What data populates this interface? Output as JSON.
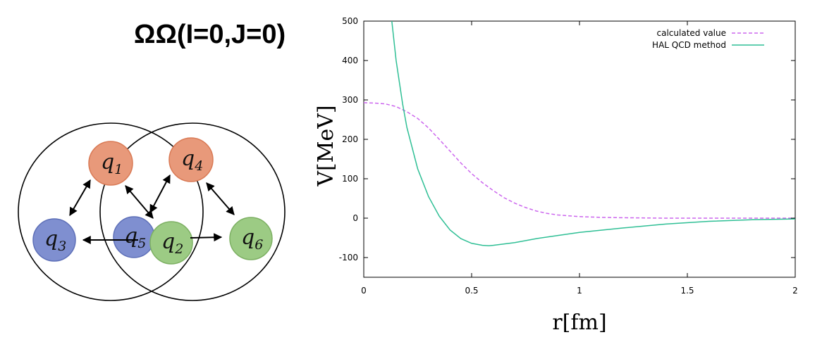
{
  "figure": {
    "title": "ΩΩ(I=0,J=0)"
  },
  "diagram": {
    "circles": [
      {
        "name": "left-hadron-circle"
      },
      {
        "name": "right-hadron-circle"
      }
    ],
    "quarks": [
      {
        "id": "q1",
        "symbol": "q",
        "sub": "1",
        "color": "#E8997A",
        "stroke": "#D97A55"
      },
      {
        "id": "q4",
        "symbol": "q",
        "sub": "4",
        "color": "#E8997A",
        "stroke": "#D97A55"
      },
      {
        "id": "q3",
        "symbol": "q",
        "sub": "3",
        "color": "#7F8FD0",
        "stroke": "#5E70B8"
      },
      {
        "id": "q5",
        "symbol": "q",
        "sub": "5",
        "color": "#7F8FD0",
        "stroke": "#5E70B8"
      },
      {
        "id": "q2",
        "symbol": "q",
        "sub": "2",
        "color": "#9CCB84",
        "stroke": "#7DB063"
      },
      {
        "id": "q6",
        "symbol": "q",
        "sub": "6",
        "color": "#9CCB84",
        "stroke": "#7DB063"
      }
    ]
  },
  "chart_data": {
    "type": "line",
    "xlabel": "r[fm]",
    "ylabel": "V[MeV]",
    "xlim": [
      0,
      2
    ],
    "ylim": [
      -150,
      500
    ],
    "xticks": [
      "0",
      "0.5",
      "1",
      "1.5",
      "2"
    ],
    "yticks": [
      "-100",
      "0",
      "100",
      "200",
      "300",
      "400",
      "500"
    ],
    "xtick_values": [
      0,
      0.5,
      1,
      1.5,
      2
    ],
    "ytick_values": [
      -100,
      0,
      100,
      200,
      300,
      400,
      500
    ],
    "legend_position": "top-right",
    "series": [
      {
        "name": "calculated value",
        "color": "#CC66EE",
        "dash": true,
        "points": [
          [
            0,
            293
          ],
          [
            0.05,
            292
          ],
          [
            0.1,
            290
          ],
          [
            0.15,
            283
          ],
          [
            0.2,
            270
          ],
          [
            0.25,
            253
          ],
          [
            0.3,
            229
          ],
          [
            0.35,
            200
          ],
          [
            0.4,
            170
          ],
          [
            0.45,
            140
          ],
          [
            0.5,
            113
          ],
          [
            0.55,
            90
          ],
          [
            0.6,
            70
          ],
          [
            0.65,
            52
          ],
          [
            0.7,
            38
          ],
          [
            0.75,
            27
          ],
          [
            0.8,
            18
          ],
          [
            0.85,
            12
          ],
          [
            0.9,
            8
          ],
          [
            1.0,
            4
          ],
          [
            1.1,
            2
          ],
          [
            1.2,
            1
          ],
          [
            1.4,
            0
          ],
          [
            1.6,
            0
          ],
          [
            1.8,
            0
          ],
          [
            2.0,
            0
          ]
        ]
      },
      {
        "name": "HAL QCD method",
        "color": "#2FBF95",
        "dash": false,
        "points": [
          [
            0.13,
            500
          ],
          [
            0.15,
            400
          ],
          [
            0.18,
            290
          ],
          [
            0.2,
            230
          ],
          [
            0.25,
            125
          ],
          [
            0.3,
            55
          ],
          [
            0.35,
            5
          ],
          [
            0.4,
            -30
          ],
          [
            0.45,
            -52
          ],
          [
            0.5,
            -64
          ],
          [
            0.55,
            -69
          ],
          [
            0.58,
            -70
          ],
          [
            0.6,
            -69
          ],
          [
            0.7,
            -62
          ],
          [
            0.8,
            -52
          ],
          [
            0.9,
            -44
          ],
          [
            1.0,
            -36
          ],
          [
            1.2,
            -25
          ],
          [
            1.4,
            -15
          ],
          [
            1.6,
            -8
          ],
          [
            1.8,
            -4
          ],
          [
            2.0,
            -2
          ]
        ]
      }
    ]
  }
}
